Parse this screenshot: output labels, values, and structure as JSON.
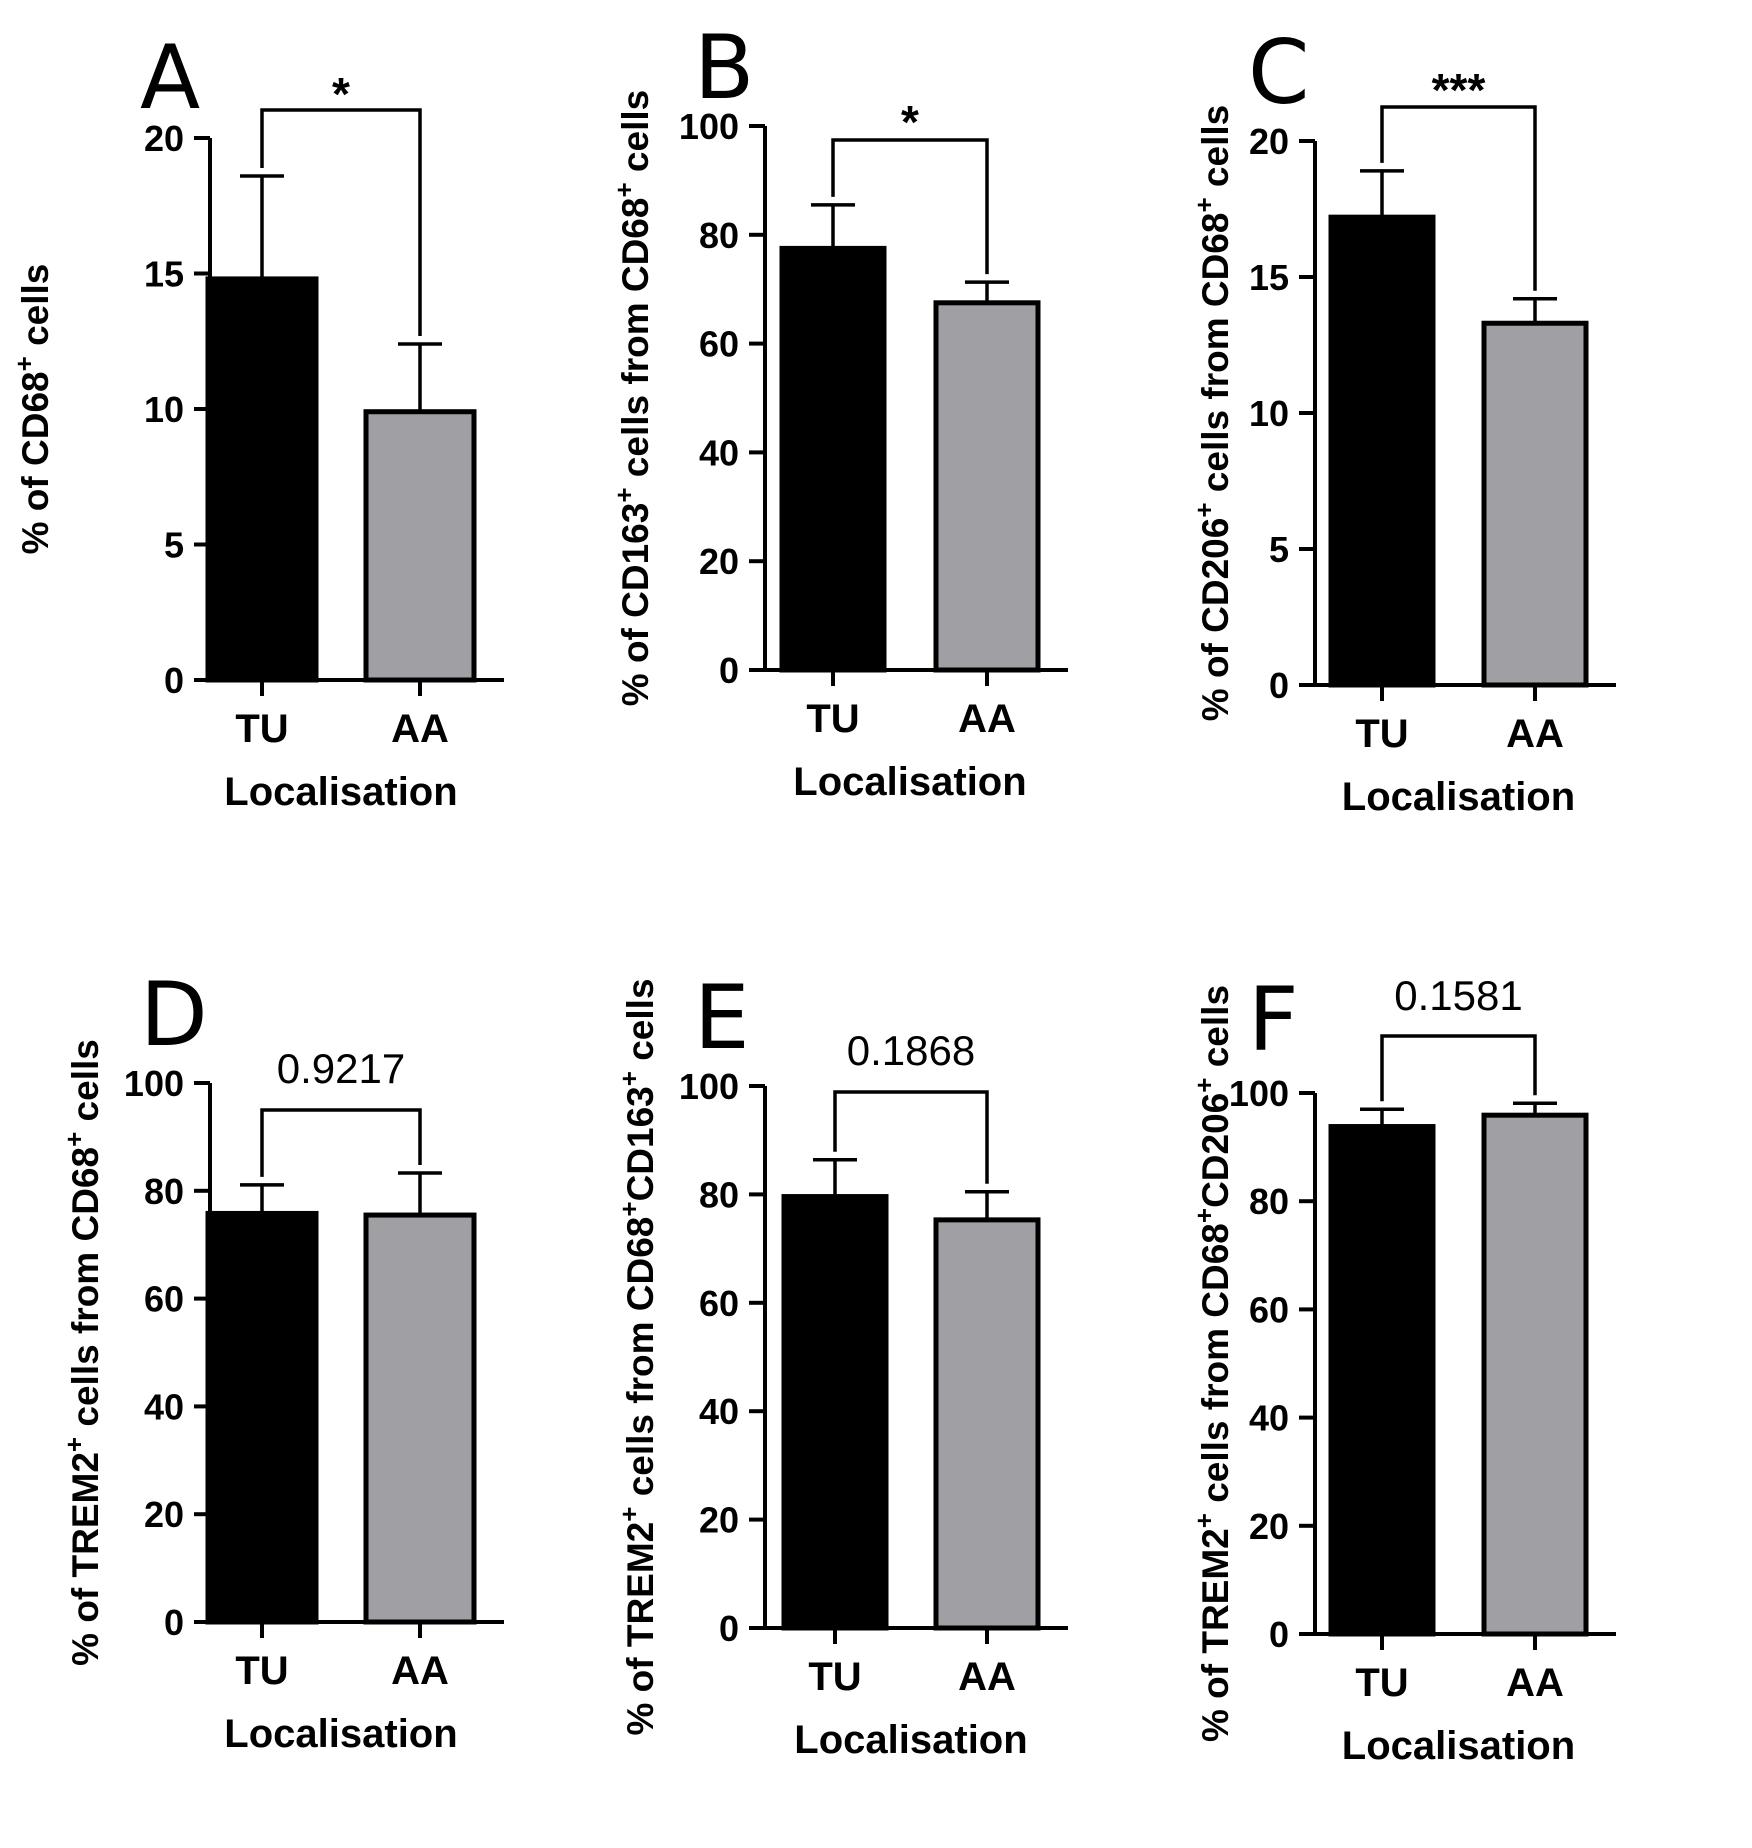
{
  "chart_data": [
    {
      "panel": "A",
      "type": "bar",
      "categories": [
        "TU",
        "AA"
      ],
      "values": [
        14.8,
        9.9
      ],
      "errors": [
        3.8,
        2.5
      ],
      "colors": [
        "#000000",
        "#a0a0a4"
      ],
      "ylabel_parts": [
        "% of CD68",
        "+",
        " cells"
      ],
      "xlabel": "Localisation",
      "ylim": [
        0,
        20
      ],
      "yticks": [
        "0",
        "5",
        "10",
        "15",
        "20"
      ],
      "significance": "*",
      "significance_style": "star"
    },
    {
      "panel": "B",
      "type": "bar",
      "categories": [
        "TU",
        "AA"
      ],
      "values": [
        77.5,
        67.5
      ],
      "errors": [
        8,
        3.8
      ],
      "colors": [
        "#000000",
        "#a0a0a4"
      ],
      "ylabel_parts": [
        "% of CD163",
        "+",
        " cells from CD68",
        "+",
        " cells"
      ],
      "xlabel": "Localisation",
      "ylim": [
        0,
        100
      ],
      "yticks": [
        "0",
        "20",
        "40",
        "60",
        "80",
        "100"
      ],
      "significance": "*",
      "significance_style": "star"
    },
    {
      "panel": "C",
      "type": "bar",
      "categories": [
        "TU",
        "AA"
      ],
      "values": [
        17.2,
        13.3
      ],
      "errors": [
        1.7,
        0.9
      ],
      "colors": [
        "#000000",
        "#a0a0a4"
      ],
      "ylabel_parts": [
        "% of CD206",
        "+",
        " cells from CD68",
        "+",
        " cells"
      ],
      "xlabel": "Localisation",
      "ylim": [
        0,
        20
      ],
      "yticks": [
        "0",
        "5",
        "10",
        "15",
        "20"
      ],
      "significance": "***",
      "significance_style": "star"
    },
    {
      "panel": "D",
      "type": "bar",
      "categories": [
        "TU",
        "AA"
      ],
      "values": [
        75.8,
        75.5
      ],
      "errors": [
        5.3,
        7.8
      ],
      "colors": [
        "#000000",
        "#a0a0a4"
      ],
      "ylabel_parts": [
        "% of TREM2",
        "+",
        " cells from CD68",
        "+",
        " cells"
      ],
      "xlabel": "Localisation",
      "ylim": [
        0,
        100
      ],
      "yticks": [
        "0",
        "20",
        "40",
        "60",
        "80",
        "100"
      ],
      "significance": "0.9217",
      "significance_style": "number"
    },
    {
      "panel": "E",
      "type": "bar",
      "categories": [
        "TU",
        "AA"
      ],
      "values": [
        79.6,
        75.3
      ],
      "errors": [
        6.8,
        5.2
      ],
      "colors": [
        "#000000",
        "#a0a0a4"
      ],
      "ylabel_parts": [
        "% of TREM2",
        "+",
        " cells from CD68",
        "+",
        "CD163",
        "+",
        " cells"
      ],
      "xlabel": "Localisation",
      "ylim": [
        0,
        100
      ],
      "yticks": [
        "0",
        "20",
        "40",
        "60",
        "80",
        "100"
      ],
      "significance": "0.1868",
      "significance_style": "number"
    },
    {
      "panel": "F",
      "type": "bar",
      "categories": [
        "TU",
        "AA"
      ],
      "values": [
        93.8,
        95.9
      ],
      "errors": [
        3.2,
        2.2
      ],
      "colors": [
        "#000000",
        "#a0a0a4"
      ],
      "ylabel_parts": [
        "% of TREM2",
        "+",
        " cells from CD68",
        "+",
        "CD206",
        "+",
        " cells"
      ],
      "xlabel": "Localisation",
      "ylim": [
        0,
        100
      ],
      "yticks": [
        "0",
        "20",
        "40",
        "60",
        "80",
        "100"
      ],
      "significance": "0.1581",
      "significance_style": "number"
    }
  ]
}
